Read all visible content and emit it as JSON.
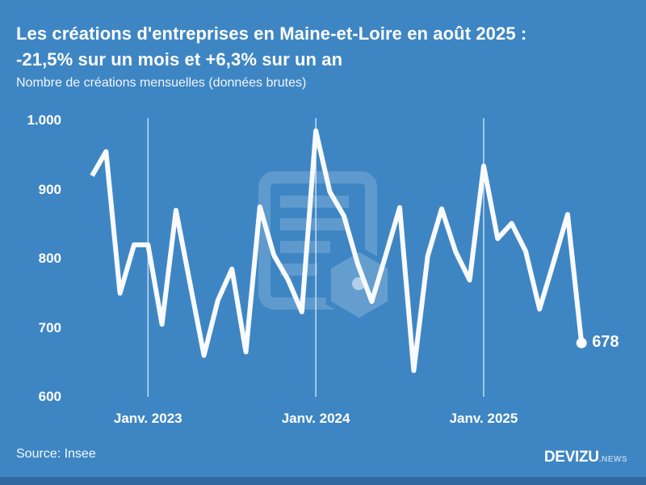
{
  "header": {
    "title_line1": "Les créations d'entreprises en Maine-et-Loire en août 2025 :",
    "title_line2": "-21,5% sur un mois et +6,3% sur un an",
    "subtitle": "Nombre de créations mensuelles (données brutes)"
  },
  "chart_data": {
    "type": "line",
    "title": "Les créations d'entreprises en Maine-et-Loire en août 2025 : -21,5% sur un mois et +6,3% sur un an",
    "ylabel": "Nombre de créations mensuelles (données brutes)",
    "x": [
      "Sept. 2022",
      "Oct. 2022",
      "Nov. 2022",
      "Déc. 2022",
      "Janv. 2023",
      "Févr. 2023",
      "Mars 2023",
      "Avr. 2023",
      "Mai 2023",
      "Juin 2023",
      "Juil. 2023",
      "Août 2023",
      "Sept. 2023",
      "Oct. 2023",
      "Nov. 2023",
      "Déc. 2023",
      "Janv. 2024",
      "Févr. 2024",
      "Mars 2024",
      "Avr. 2024",
      "Mai 2024",
      "Juin 2024",
      "Juil. 2024",
      "Août 2024",
      "Sept. 2024",
      "Oct. 2024",
      "Nov. 2024",
      "Déc. 2024",
      "Janv. 2025",
      "Févr. 2025",
      "Mars 2025",
      "Avr. 2025",
      "Mai 2025",
      "Juin 2025",
      "Juil. 2025",
      "Août 2025"
    ],
    "values": [
      920,
      955,
      750,
      820,
      820,
      705,
      870,
      765,
      660,
      740,
      785,
      665,
      875,
      805,
      770,
      723,
      985,
      897,
      862,
      792,
      738,
      805,
      874,
      638,
      804,
      872,
      810,
      769,
      934,
      829,
      851,
      811,
      727,
      795,
      864,
      678
    ],
    "y_ticks": [
      600,
      700,
      800,
      900,
      1000
    ],
    "y_tick_labels": [
      "600",
      "700",
      "800",
      "900",
      "1.000"
    ],
    "ylim": [
      600,
      1000
    ],
    "x_tick_labels": [
      "Janv. 2023",
      "Janv. 2024",
      "Janv. 2025"
    ],
    "x_tick_indices": [
      4,
      16,
      28
    ],
    "grid": "vertical-year-lines-only",
    "legend": "none",
    "end_label": "678",
    "line_color": "#f8fafd",
    "background_color": "#3e86c3"
  },
  "footer": {
    "source": "Source: Insee",
    "brand": "DEVIZU",
    "brand_suffix": ".NEWS"
  }
}
